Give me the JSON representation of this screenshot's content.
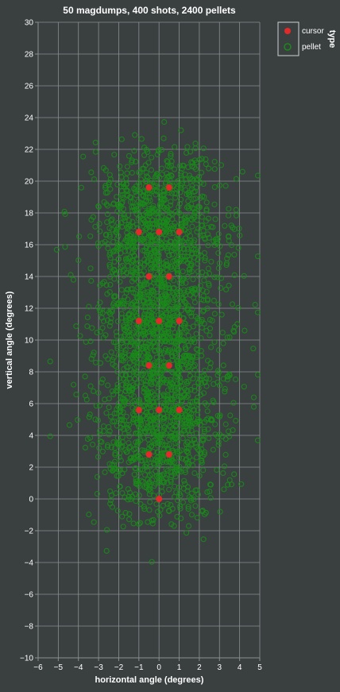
{
  "chart_data": {
    "type": "scatter",
    "title": "50 magdumps, 400 shots, 2400 pellets",
    "xlabel": "horizontal angle (degrees)",
    "ylabel": "vertical angle (degrees)",
    "xlim": [
      -6,
      5
    ],
    "ylim": [
      -10,
      30
    ],
    "x_ticks": [
      "−6",
      "−5",
      "−4",
      "−3",
      "−2",
      "−1",
      "0",
      "1",
      "2",
      "3",
      "4",
      "5"
    ],
    "y_ticks": [
      "−10",
      "−8",
      "−6",
      "−4",
      "−2",
      "0",
      "2",
      "4",
      "6",
      "8",
      "10",
      "12",
      "14",
      "16",
      "18",
      "20",
      "22",
      "24",
      "26",
      "28",
      "30"
    ],
    "grid": true,
    "legend": {
      "title": "type",
      "placement": "top-right outside",
      "entries": [
        "cursor",
        "pellet"
      ]
    },
    "colors": {
      "background": "#3a3f40",
      "grid": "#8a8f90",
      "text": "#ffffff",
      "cursor": "#e32a2a",
      "pellet": "#1a8a1a"
    },
    "series": [
      {
        "name": "cursor",
        "marker": "filled-circle",
        "points": [
          [
            -0.5,
            19.6
          ],
          [
            0.5,
            19.6
          ],
          [
            -1.0,
            16.8
          ],
          [
            0.0,
            16.8
          ],
          [
            1.0,
            16.8
          ],
          [
            -0.5,
            14.0
          ],
          [
            0.5,
            14.0
          ],
          [
            -1.0,
            11.2
          ],
          [
            0.0,
            11.2
          ],
          [
            1.0,
            11.2
          ],
          [
            -0.5,
            8.4
          ],
          [
            0.5,
            8.4
          ],
          [
            -1.0,
            5.6
          ],
          [
            0.0,
            5.6
          ],
          [
            1.0,
            5.6
          ],
          [
            -0.5,
            2.8
          ],
          [
            0.5,
            2.8
          ],
          [
            0.0,
            0.0
          ]
        ]
      },
      {
        "name": "pellet",
        "marker": "hollow-circle",
        "distribution": {
          "count": 2400,
          "centered_on": "cursor",
          "spread_x_deg": 1.5,
          "spread_y_deg": 1.5,
          "x_extent": [
            -5.4,
            4.9
          ],
          "y_extent": [
            -4.0,
            23.9
          ]
        }
      }
    ]
  }
}
